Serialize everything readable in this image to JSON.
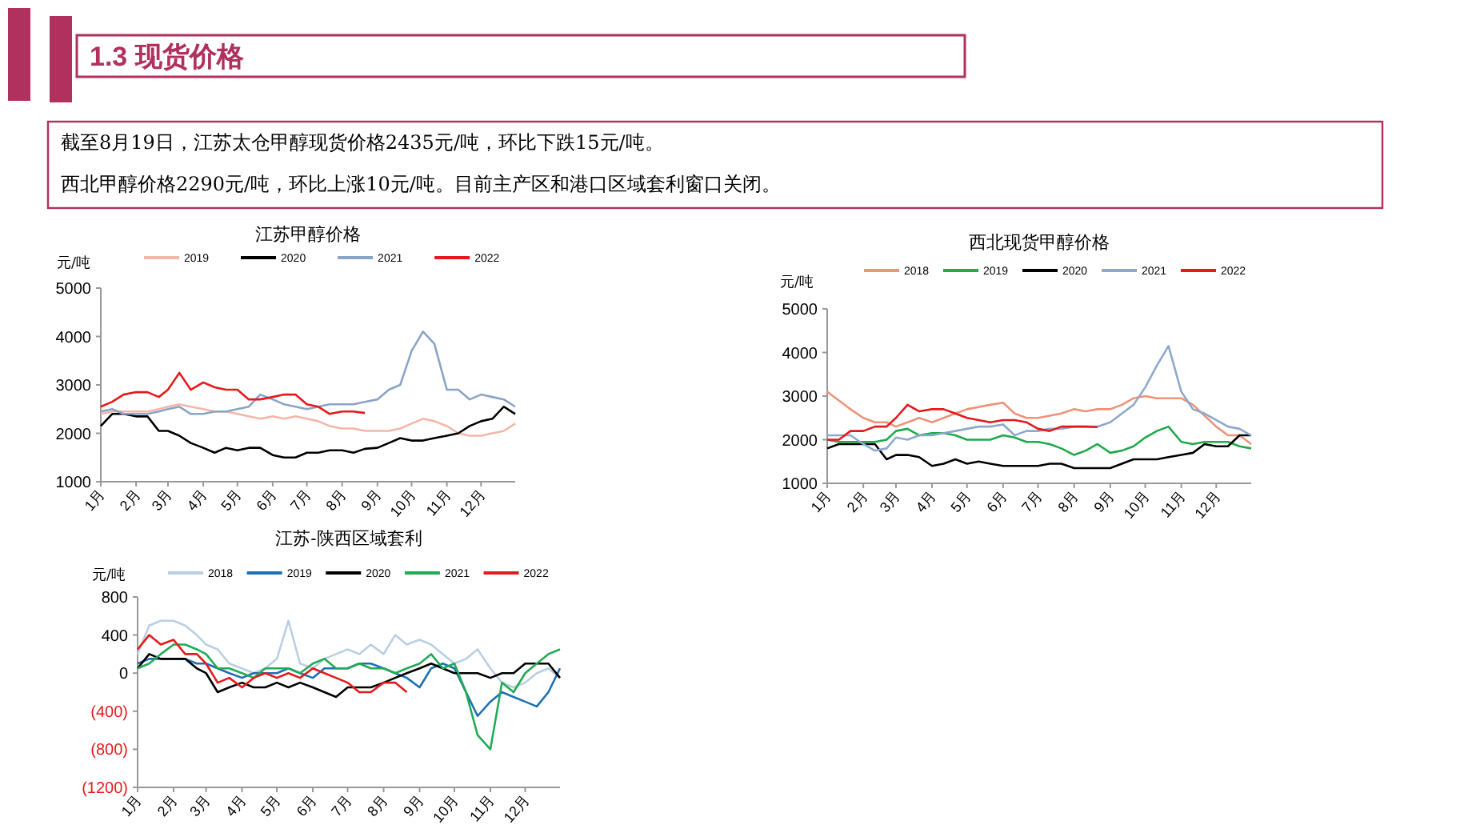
{
  "chart_data": [
    {
      "type": "other",
      "title": "1.3 现货价格",
      "annotations": [
        "截至8月19日，江苏太仓甲醇现货价格2435元/吨，环比下跌15元/吨。",
        "西北甲醇价格2290元/吨，环比上涨10元/吨。目前主产区和港口区域套利窗口关闭。"
      ]
    },
    {
      "type": "line",
      "title": "江苏甲醇价格",
      "ylabel": "元/吨",
      "legend": "top",
      "grid": false,
      "marker": "none",
      "line_style": "solid",
      "x": [
        "--01-01",
        "--01-11",
        "--01-21",
        "--02-01",
        "--02-11",
        "--02-21",
        "--03-01",
        "--03-11",
        "--03-21",
        "--04-01",
        "--04-11",
        "--04-21",
        "--05-01",
        "--05-11",
        "--05-21",
        "--06-01",
        "--06-11",
        "--06-21",
        "--07-01",
        "--07-11",
        "--07-21",
        "--08-01",
        "--08-11",
        "--08-21",
        "--09-01",
        "--09-11",
        "--09-21",
        "--10-01",
        "--10-11",
        "--10-21",
        "--11-01",
        "--11-11",
        "--11-21",
        "--12-01",
        "--12-11",
        "--12-21",
        "--12-31"
      ],
      "xlim": [
        "--01-01",
        "--12-31"
      ],
      "xticks": [
        {
          "value": "--01-01",
          "label": "1月"
        },
        {
          "value": "--02-01",
          "label": "2月"
        },
        {
          "value": "--03-01",
          "label": "3月"
        },
        {
          "value": "--04-01",
          "label": "4月"
        },
        {
          "value": "--05-01",
          "label": "5月"
        },
        {
          "value": "--06-01",
          "label": "6月"
        },
        {
          "value": "--07-01",
          "label": "7月"
        },
        {
          "value": "--08-01",
          "label": "8月"
        },
        {
          "value": "--09-01",
          "label": "9月"
        },
        {
          "value": "--10-01",
          "label": "10月"
        },
        {
          "value": "--11-01",
          "label": "11月"
        },
        {
          "value": "--12-01",
          "label": "12月"
        }
      ],
      "ylim": [
        1000,
        5000
      ],
      "yticks": [
        1000,
        2000,
        3000,
        4000,
        5000
      ],
      "series": [
        {
          "name": "2019",
          "color": "#f4b6a8",
          "values": [
            2400,
            2450,
            2450,
            2450,
            2450,
            2500,
            2550,
            2600,
            2550,
            2500,
            2450,
            2450,
            2400,
            2350,
            2300,
            2350,
            2300,
            2350,
            2300,
            2250,
            2150,
            2100,
            2100,
            2050,
            2050,
            2050,
            2100,
            2200,
            2300,
            2250,
            2150,
            2000,
            1950,
            1950,
            2000,
            2050,
            2200
          ]
        },
        {
          "name": "2020",
          "color": "#000000",
          "values": [
            2150,
            2400,
            2400,
            2350,
            2350,
            2050,
            2050,
            1950,
            1800,
            1700,
            1600,
            1700,
            1650,
            1700,
            1700,
            1550,
            1500,
            1500,
            1600,
            1600,
            1650,
            1650,
            1600,
            1680,
            1700,
            1800,
            1900,
            1850,
            1850,
            1900,
            1950,
            2000,
            2150,
            2250,
            2300,
            2550,
            2400
          ]
        },
        {
          "name": "2021",
          "color": "#8aa4c8",
          "values": [
            2450,
            2500,
            2400,
            2400,
            2400,
            2450,
            2500,
            2550,
            2400,
            2400,
            2450,
            2450,
            2500,
            2550,
            2800,
            2700,
            2600,
            2550,
            2500,
            2550,
            2600,
            2600,
            2600,
            2650,
            2700,
            2900,
            3000,
            3700,
            4100,
            3850,
            2900,
            2900,
            2700,
            2800,
            2750,
            2700,
            2550
          ]
        },
        {
          "name": "2022",
          "color": "#e41a1c",
          "values": [
            2550,
            2650,
            2800,
            2850,
            2850,
            2750,
            2900,
            3250,
            2900,
            3050,
            2950,
            2900,
            2900,
            2700,
            2700,
            2750,
            2800,
            2800,
            2600,
            2550,
            2400,
            2450,
            2450,
            2420,
            null,
            null,
            null,
            null,
            null,
            null,
            null,
            null,
            null,
            null,
            null,
            null,
            null
          ]
        }
      ]
    },
    {
      "type": "line",
      "title": "西北现货甲醇价格",
      "ylabel": "元/吨",
      "legend": "top",
      "grid": false,
      "marker": "none",
      "line_style": "solid",
      "x": [
        "--01-01",
        "--01-11",
        "--01-21",
        "--02-01",
        "--02-11",
        "--02-21",
        "--03-01",
        "--03-11",
        "--03-21",
        "--04-01",
        "--04-11",
        "--04-21",
        "--05-01",
        "--05-11",
        "--05-21",
        "--06-01",
        "--06-11",
        "--06-21",
        "--07-01",
        "--07-11",
        "--07-21",
        "--08-01",
        "--08-11",
        "--08-21",
        "--09-01",
        "--09-11",
        "--09-21",
        "--10-01",
        "--10-11",
        "--10-21",
        "--11-01",
        "--11-11",
        "--11-21",
        "--12-01",
        "--12-11",
        "--12-21",
        "--12-31"
      ],
      "xlim": [
        "--01-01",
        "--12-31"
      ],
      "xticks": [
        {
          "value": "--01-01",
          "label": "1月"
        },
        {
          "value": "--02-01",
          "label": "2月"
        },
        {
          "value": "--03-01",
          "label": "3月"
        },
        {
          "value": "--04-01",
          "label": "4月"
        },
        {
          "value": "--05-01",
          "label": "5月"
        },
        {
          "value": "--06-01",
          "label": "6月"
        },
        {
          "value": "--07-01",
          "label": "7月"
        },
        {
          "value": "--08-01",
          "label": "8月"
        },
        {
          "value": "--09-01",
          "label": "9月"
        },
        {
          "value": "--10-01",
          "label": "10月"
        },
        {
          "value": "--11-01",
          "label": "11月"
        },
        {
          "value": "--12-01",
          "label": "12月"
        }
      ],
      "ylim": [
        1000,
        5000
      ],
      "yticks": [
        1000,
        2000,
        3000,
        4000,
        5000
      ],
      "series": [
        {
          "name": "2018",
          "color": "#ee9379",
          "values": [
            3100,
            2900,
            2700,
            2500,
            2400,
            2400,
            2300,
            2400,
            2500,
            2400,
            2500,
            2600,
            2700,
            2750,
            2800,
            2850,
            2600,
            2500,
            2500,
            2550,
            2600,
            2700,
            2650,
            2700,
            2700,
            2800,
            2950,
            3000,
            2950,
            2950,
            2950,
            2800,
            2550,
            2300,
            2100,
            2100,
            1900
          ]
        },
        {
          "name": "2019",
          "color": "#1faa4b",
          "values": [
            2000,
            1950,
            1950,
            1950,
            1950,
            2000,
            2200,
            2250,
            2100,
            2150,
            2150,
            2100,
            2000,
            2000,
            2000,
            2100,
            2050,
            1950,
            1950,
            1900,
            1800,
            1650,
            1750,
            1900,
            1700,
            1750,
            1850,
            2050,
            2200,
            2300,
            1950,
            1900,
            1950,
            1950,
            1950,
            1850,
            1800
          ]
        },
        {
          "name": "2020",
          "color": "#000000",
          "values": [
            1800,
            1900,
            1900,
            1900,
            1900,
            1550,
            1650,
            1650,
            1600,
            1400,
            1450,
            1550,
            1450,
            1500,
            1450,
            1400,
            1400,
            1400,
            1400,
            1450,
            1450,
            1350,
            1350,
            1350,
            1350,
            1450,
            1550,
            1550,
            1550,
            1600,
            1650,
            1700,
            1900,
            1850,
            1850,
            2100,
            2100
          ]
        },
        {
          "name": "2021",
          "color": "#8ea9cc",
          "values": [
            2100,
            2100,
            2100,
            1900,
            1750,
            1800,
            2050,
            2000,
            2100,
            2100,
            2150,
            2200,
            2250,
            2300,
            2300,
            2350,
            2100,
            2200,
            2200,
            2250,
            2250,
            2300,
            2300,
            2300,
            2400,
            2600,
            2800,
            3200,
            3700,
            4150,
            3100,
            2700,
            2600,
            2450,
            2300,
            2250,
            2100
          ]
        },
        {
          "name": "2022",
          "color": "#e41a1c",
          "values": [
            2000,
            2000,
            2200,
            2200,
            2300,
            2300,
            2500,
            2800,
            2650,
            2700,
            2700,
            2600,
            2500,
            2450,
            2400,
            2450,
            2450,
            2400,
            2250,
            2200,
            2300,
            2300,
            2300,
            2290,
            null,
            null,
            null,
            null,
            null,
            null,
            null,
            null,
            null,
            null,
            null,
            null,
            null
          ]
        }
      ]
    },
    {
      "type": "line",
      "title": "江苏-陕西区域套利",
      "ylabel": "元/吨",
      "legend": "top",
      "grid": false,
      "marker": "none",
      "line_style": "solid",
      "x": [
        "--01-01",
        "--01-11",
        "--01-21",
        "--02-01",
        "--02-11",
        "--02-21",
        "--03-01",
        "--03-11",
        "--03-21",
        "--04-01",
        "--04-11",
        "--04-21",
        "--05-01",
        "--05-11",
        "--05-21",
        "--06-01",
        "--06-11",
        "--06-21",
        "--07-01",
        "--07-11",
        "--07-21",
        "--08-01",
        "--08-11",
        "--08-21",
        "--09-01",
        "--09-11",
        "--09-21",
        "--10-01",
        "--10-11",
        "--10-21",
        "--11-01",
        "--11-11",
        "--11-21",
        "--12-01",
        "--12-11",
        "--12-21",
        "--12-31"
      ],
      "xlim": [
        "--01-01",
        "--12-31"
      ],
      "xticks": [
        {
          "value": "--01-01",
          "label": "1月"
        },
        {
          "value": "--02-01",
          "label": "2月"
        },
        {
          "value": "--03-01",
          "label": "3月"
        },
        {
          "value": "--04-01",
          "label": "4月"
        },
        {
          "value": "--05-01",
          "label": "5月"
        },
        {
          "value": "--06-01",
          "label": "6月"
        },
        {
          "value": "--07-01",
          "label": "7月"
        },
        {
          "value": "--08-01",
          "label": "8月"
        },
        {
          "value": "--09-01",
          "label": "9月"
        },
        {
          "value": "--10-01",
          "label": "10月"
        },
        {
          "value": "--11-01",
          "label": "11月"
        },
        {
          "value": "--12-01",
          "label": "12月"
        }
      ],
      "ylim": [
        -1200,
        800
      ],
      "yticks": [
        {
          "value": -1200,
          "label": "(1200)"
        },
        {
          "value": -800,
          "label": "(800)"
        },
        {
          "value": -400,
          "label": "(400)"
        },
        0,
        400,
        800
      ],
      "series": [
        {
          "name": "2018",
          "color": "#b9cfe4",
          "values": [
            200,
            500,
            550,
            550,
            500,
            400,
            300,
            250,
            100,
            50,
            0,
            50,
            150,
            550,
            100,
            50,
            150,
            200,
            250,
            200,
            300,
            200,
            400,
            300,
            350,
            300,
            200,
            100,
            150,
            250,
            50,
            -100,
            -150,
            -100,
            0,
            50,
            -50
          ]
        },
        {
          "name": "2019",
          "color": "#1f6fb5",
          "values": [
            100,
            150,
            150,
            150,
            150,
            100,
            100,
            50,
            0,
            -50,
            0,
            0,
            0,
            50,
            0,
            -50,
            50,
            50,
            50,
            100,
            100,
            50,
            0,
            -50,
            -150,
            50,
            100,
            50,
            -200,
            -450,
            -300,
            -200,
            -250,
            -300,
            -350,
            -200,
            50
          ]
        },
        {
          "name": "2020",
          "color": "#000000",
          "values": [
            50,
            200,
            150,
            150,
            150,
            50,
            0,
            -200,
            -150,
            -100,
            -150,
            -150,
            -100,
            -150,
            -100,
            -150,
            -200,
            -250,
            -150,
            -150,
            -150,
            -100,
            -50,
            0,
            50,
            100,
            50,
            0,
            0,
            0,
            -50,
            0,
            0,
            100,
            100,
            100,
            -50
          ]
        },
        {
          "name": "2021",
          "color": "#22aa55",
          "values": [
            50,
            100,
            200,
            300,
            300,
            250,
            200,
            50,
            50,
            0,
            -50,
            50,
            50,
            50,
            0,
            100,
            150,
            50,
            50,
            100,
            50,
            50,
            0,
            50,
            100,
            200,
            50,
            100,
            -200,
            -650,
            -800,
            -100,
            -200,
            0,
            100,
            200,
            250
          ]
        },
        {
          "name": "2022",
          "color": "#e41a1c",
          "values": [
            250,
            400,
            300,
            350,
            200,
            200,
            100,
            -100,
            -50,
            -150,
            -50,
            0,
            -50,
            0,
            -50,
            50,
            0,
            -50,
            -100,
            -200,
            -200,
            -100,
            -100,
            -200,
            null,
            null,
            null,
            null,
            null,
            null,
            null,
            null,
            null,
            null,
            null,
            null,
            null
          ]
        }
      ]
    }
  ]
}
